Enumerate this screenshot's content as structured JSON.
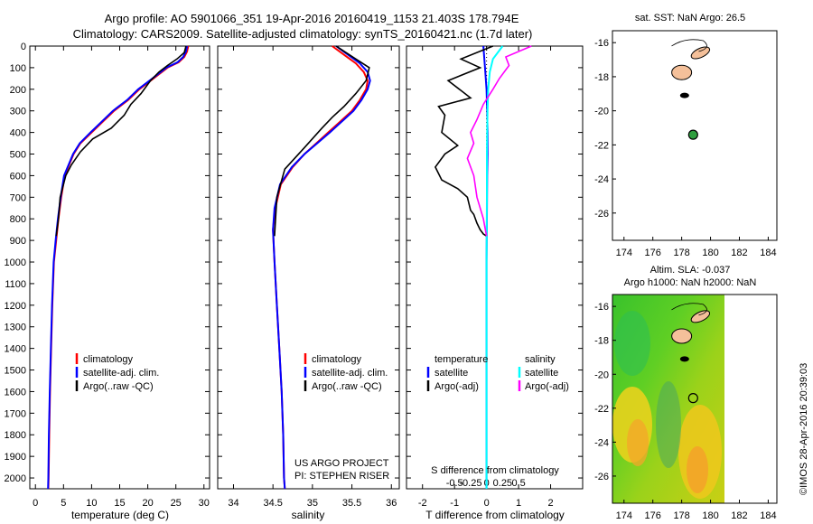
{
  "titles": {
    "line1": "Argo profile: AO 5901066_351 19-Apr-2016 20160419_1153 21.403S 178.794E",
    "line2": "Climatology: CARS2009. Satellite-adjusted climatology: synTS_20160421.nc (1.7d later)"
  },
  "watermark": "©IMOS 28-Apr-2016 20:39:03",
  "project_text": {
    "line1": "US ARGO PROJECT",
    "line2": "PI: STEPHEN RISER"
  },
  "legend_main": [
    "climatology",
    "satellite-adj. clim.",
    "Argo(..raw -QC)"
  ],
  "legend_diff": {
    "temperature_heading": "temperature",
    "salinity_heading": "salinity",
    "satellite": "satellite",
    "argo": "Argo(-adj)"
  },
  "diff_top_label": "S difference from climatology",
  "map_titles": {
    "sst": "sat. SST: NaN Argo: 26.5",
    "sla_line1": "Altim. SLA: -0.037",
    "sla_line2": "Argo h1000: NaN h2000: NaN"
  },
  "colors": {
    "climatology": "#ff0000",
    "satellite": "#0000ff",
    "argo": "#000000",
    "salinity_satellite": "#00ffff",
    "salinity_argo": "#ff00ff",
    "land": "#f4c09a",
    "float_marker": "#2e9e3e"
  },
  "chart_data": [
    {
      "type": "line",
      "panel": "temperature",
      "xlabel": "temperature (deg C)",
      "ylabel": "",
      "xlim": [
        -1,
        31
      ],
      "ylim": [
        2050,
        0
      ],
      "x_ticks": [
        0,
        5,
        10,
        15,
        20,
        25,
        30
      ],
      "y_ticks": [
        0,
        100,
        200,
        300,
        400,
        500,
        600,
        700,
        800,
        900,
        1000,
        1100,
        1200,
        1300,
        1400,
        1500,
        1600,
        1700,
        1800,
        1900,
        2000
      ],
      "series": [
        {
          "name": "climatology",
          "x": [
            27.2,
            27.0,
            26.5,
            25.5,
            23.5,
            21,
            18.5,
            16.5,
            14,
            12,
            10,
            8,
            6.8,
            6,
            5.2,
            4.6,
            4.1,
            3.7,
            3.3,
            3.0,
            2.8,
            2.6,
            2.45,
            2.35,
            2.3
          ],
          "y": [
            0,
            25,
            50,
            75,
            100,
            150,
            200,
            250,
            300,
            350,
            400,
            450,
            500,
            550,
            600,
            700,
            800,
            900,
            1000,
            1200,
            1400,
            1600,
            1800,
            2000,
            2050
          ]
        },
        {
          "name": "satellite-adj. clim.",
          "x": [
            27.0,
            26.8,
            26.3,
            25.3,
            23.3,
            20.8,
            18.3,
            16.3,
            13.8,
            11.8,
            9.8,
            7.9,
            6.7,
            5.9,
            5.1,
            4.5,
            4.0,
            3.6,
            3.25,
            2.95,
            2.75,
            2.55,
            2.4,
            2.3,
            2.25
          ],
          "y": [
            0,
            25,
            50,
            75,
            100,
            150,
            200,
            250,
            300,
            350,
            400,
            450,
            500,
            550,
            600,
            700,
            800,
            900,
            1000,
            1200,
            1400,
            1600,
            1800,
            2000,
            2050
          ]
        },
        {
          "name": "Argo(..raw -QC)",
          "x": [
            26.8,
            26.5,
            25.2,
            23.5,
            22.0,
            20.5,
            18.8,
            17.0,
            15.8,
            13.5,
            10.2,
            8.0,
            6.4,
            5.4,
            4.9,
            4.4,
            4.1,
            3.7
          ],
          "y": [
            0,
            30,
            60,
            90,
            120,
            160,
            220,
            270,
            320,
            380,
            430,
            490,
            550,
            600,
            650,
            700,
            800,
            880
          ]
        }
      ]
    },
    {
      "type": "line",
      "panel": "salinity",
      "xlabel": "salinity",
      "xlim": [
        33.8,
        36.1
      ],
      "ylim": [
        2050,
        0
      ],
      "x_ticks": [
        34,
        34.5,
        35,
        35.5,
        36
      ],
      "series": [
        {
          "name": "climatology",
          "x": [
            35.25,
            35.4,
            35.55,
            35.65,
            35.7,
            35.68,
            35.6,
            35.5,
            35.35,
            35.2,
            35.05,
            34.9,
            34.75,
            34.6,
            34.53,
            34.5,
            34.52,
            34.55,
            34.58,
            34.61,
            34.63,
            34.64,
            34.65
          ],
          "y": [
            0,
            40,
            80,
            120,
            160,
            200,
            250,
            300,
            350,
            400,
            450,
            500,
            560,
            640,
            750,
            850,
            1000,
            1200,
            1400,
            1600,
            1800,
            2000,
            2050
          ]
        },
        {
          "name": "satellite-adj. clim.",
          "x": [
            35.3,
            35.45,
            35.6,
            35.7,
            35.73,
            35.7,
            35.62,
            35.52,
            35.37,
            35.22,
            35.06,
            34.9,
            34.74,
            34.59,
            34.52,
            34.5,
            34.52,
            34.55,
            34.58,
            34.61,
            34.63,
            34.64,
            34.65
          ],
          "y": [
            0,
            40,
            80,
            120,
            160,
            200,
            250,
            300,
            350,
            400,
            450,
            500,
            560,
            640,
            750,
            850,
            1000,
            1200,
            1400,
            1600,
            1800,
            2000,
            2050
          ]
        },
        {
          "name": "Argo(..raw -QC)",
          "x": [
            35.3,
            35.55,
            35.72,
            35.68,
            35.55,
            35.4,
            35.25,
            35.12,
            34.9,
            34.65,
            34.55,
            34.52
          ],
          "y": [
            0,
            60,
            100,
            160,
            220,
            280,
            330,
            380,
            470,
            570,
            700,
            880
          ]
        }
      ]
    },
    {
      "type": "line",
      "panel": "difference",
      "xlabel": "T difference from climatology",
      "top_label": "S difference from climatology",
      "xlim": [
        -2.5,
        3.0
      ],
      "ylim": [
        2050,
        0
      ],
      "x_ticks_T": [
        -2,
        -1,
        0,
        1,
        2
      ],
      "x_ticks_S": [
        -0.5,
        -0.25,
        0,
        0.25,
        0.5
      ],
      "series": [
        {
          "name": "satellite",
          "x": [
            -0.1,
            -0.05,
            0.0,
            0.02,
            0.03,
            0.03,
            0.02,
            0.01,
            0.0,
            0.0,
            0.0
          ],
          "y": [
            0,
            100,
            200,
            300,
            400,
            500,
            600,
            800,
            1000,
            1500,
            2050
          ]
        },
        {
          "name": "Argo(-adj)",
          "x": [
            0.2,
            -0.8,
            -0.2,
            -1.2,
            -0.5,
            -1.5,
            -1.3,
            -1.4,
            -0.9,
            -1.3,
            -1.6,
            -1.4,
            -0.9,
            -0.6,
            -0.5,
            -0.4,
            -0.3,
            -0.2,
            -0.1,
            0.0
          ],
          "y": [
            0,
            60,
            100,
            160,
            240,
            280,
            320,
            400,
            460,
            500,
            560,
            620,
            660,
            700,
            760,
            780,
            820,
            850,
            870,
            880
          ]
        },
        {
          "name": "salinity satellite",
          "x": [
            0.5,
            0.2,
            0.1,
            0.05,
            0.03,
            0.02,
            0.01,
            0.01,
            0.0,
            0.0,
            0.0
          ],
          "y": [
            0,
            60,
            120,
            200,
            300,
            400,
            500,
            700,
            1000,
            1500,
            2050
          ]
        },
        {
          "name": "salinity Argo(-adj)",
          "x": [
            1.4,
            0.6,
            0.7,
            0.4,
            0.2,
            -0.1,
            -0.3,
            -0.5,
            -0.4,
            -0.6,
            -0.4,
            -0.3,
            -0.1,
            0.0
          ],
          "y": [
            0,
            50,
            90,
            150,
            200,
            270,
            340,
            400,
            450,
            520,
            600,
            700,
            800,
            880
          ]
        }
      ]
    },
    {
      "type": "scatter",
      "panel": "map_sst",
      "title": "sat. SST: NaN Argo: 26.5",
      "xlim": [
        173.2,
        184.6
      ],
      "ylim": [
        -27.6,
        -15.3
      ],
      "x_ticks": [
        174,
        176,
        178,
        180,
        182,
        184
      ],
      "y_ticks": [
        -16,
        -18,
        -20,
        -22,
        -24,
        -26
      ],
      "points": [
        {
          "lon": 178.794,
          "lat": -21.403
        }
      ]
    },
    {
      "type": "heatmap",
      "panel": "map_sla",
      "title": "Altim. SLA: -0.037 / Argo h1000: NaN h2000: NaN",
      "xlim": [
        173.2,
        184.6
      ],
      "ylim": [
        -27.6,
        -15.3
      ],
      "x_ticks": [
        174,
        176,
        178,
        180,
        182,
        184
      ],
      "y_ticks": [
        -16,
        -18,
        -20,
        -22,
        -24,
        -26
      ],
      "data_extent_lon": [
        173.2,
        180.0
      ],
      "points": [
        {
          "lon": 178.794,
          "lat": -21.403
        }
      ]
    }
  ]
}
